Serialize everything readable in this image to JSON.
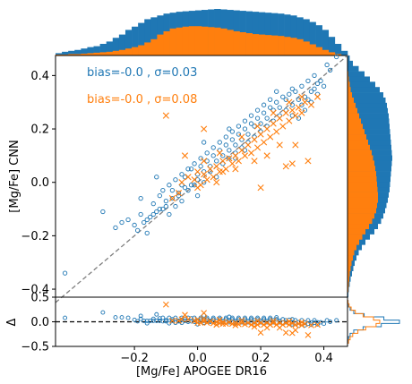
{
  "chart_data": {
    "type": "scatter",
    "colors": {
      "apogee": "#1f77b4",
      "test": "#ff7f0e",
      "identity": "#7f7f7f",
      "zero": "#000000"
    },
    "main": {
      "xlim": [
        -0.45,
        0.475
      ],
      "ylim": [
        -0.43,
        0.475
      ],
      "yticks": [
        -0.4,
        -0.2,
        0.0,
        0.2,
        0.4
      ],
      "ylabel": "[Mg/Fe] CNN",
      "annotations": [
        {
          "text": "bias=-0.0 , σ=0.03",
          "color": "#1f77b4"
        },
        {
          "text": "bias=-0.0 , σ=0.08",
          "color": "#ff7f0e"
        }
      ],
      "series": [
        {
          "marker": "circle-open",
          "color": "#1f77b4",
          "points": [
            [
              -0.42,
              -0.34
            ],
            [
              -0.3,
              -0.11
            ],
            [
              -0.22,
              -0.14
            ],
            [
              -0.19,
              -0.18
            ],
            [
              -0.18,
              -0.12
            ],
            [
              -0.17,
              -0.15
            ],
            [
              -0.16,
              -0.19
            ],
            [
              -0.15,
              -0.13
            ],
            [
              -0.14,
              -0.08
            ],
            [
              -0.13,
              -0.11
            ],
            [
              -0.12,
              -0.05
            ],
            [
              -0.11,
              -0.1
            ],
            [
              -0.1,
              -0.07
            ],
            [
              -0.09,
              -0.12
            ],
            [
              -0.08,
              -0.03
            ],
            [
              -0.07,
              -0.09
            ],
            [
              -0.06,
              -0.04
            ],
            [
              -0.05,
              -0.01
            ],
            [
              -0.05,
              -0.07
            ],
            [
              -0.04,
              0.02
            ],
            [
              -0.03,
              -0.03
            ],
            [
              -0.02,
              0.05
            ],
            [
              -0.01,
              -0.01
            ],
            [
              0.0,
              0.03
            ],
            [
              0.0,
              -0.05
            ],
            [
              0.01,
              0.06
            ],
            [
              0.02,
              0.0
            ],
            [
              0.03,
              0.08
            ],
            [
              0.04,
              0.04
            ],
            [
              0.05,
              0.1
            ],
            [
              0.06,
              0.02
            ],
            [
              0.07,
              0.12
            ],
            [
              0.08,
              0.07
            ],
            [
              0.09,
              0.14
            ],
            [
              0.1,
              0.09
            ],
            [
              0.11,
              0.16
            ],
            [
              0.12,
              0.11
            ],
            [
              0.13,
              0.18
            ],
            [
              0.14,
              0.13
            ],
            [
              0.15,
              0.2
            ],
            [
              0.16,
              0.15
            ],
            [
              0.17,
              0.22
            ],
            [
              0.18,
              0.17
            ],
            [
              0.19,
              0.24
            ],
            [
              0.2,
              0.19
            ],
            [
              0.21,
              0.26
            ],
            [
              0.22,
              0.21
            ],
            [
              0.23,
              0.28
            ],
            [
              0.24,
              0.23
            ],
            [
              0.25,
              0.3
            ],
            [
              0.26,
              0.25
            ],
            [
              0.27,
              0.32
            ],
            [
              0.28,
              0.27
            ],
            [
              0.29,
              0.33
            ],
            [
              0.3,
              0.29
            ],
            [
              0.31,
              0.34
            ],
            [
              0.32,
              0.31
            ],
            [
              0.33,
              0.36
            ],
            [
              0.34,
              0.32
            ],
            [
              0.35,
              0.38
            ],
            [
              0.36,
              0.34
            ],
            [
              0.37,
              0.4
            ],
            [
              0.38,
              0.37
            ],
            [
              0.41,
              0.44
            ],
            [
              0.44,
              0.47
            ],
            [
              0.3,
              0.35
            ],
            [
              0.28,
              0.31
            ],
            [
              0.26,
              0.28
            ],
            [
              0.24,
              0.27
            ],
            [
              0.22,
              0.24
            ],
            [
              0.2,
              0.22
            ],
            [
              0.18,
              0.21
            ],
            [
              0.16,
              0.18
            ],
            [
              0.14,
              0.16
            ],
            [
              0.12,
              0.14
            ],
            [
              0.1,
              0.12
            ],
            [
              0.08,
              0.1
            ],
            [
              0.06,
              0.08
            ],
            [
              0.04,
              0.06
            ],
            [
              0.02,
              0.04
            ],
            [
              0.0,
              0.01
            ],
            [
              -0.02,
              -0.01
            ],
            [
              -0.04,
              -0.02
            ],
            [
              -0.06,
              -0.05
            ],
            [
              -0.08,
              -0.06
            ],
            [
              -0.1,
              -0.09
            ],
            [
              -0.12,
              -0.1
            ],
            [
              -0.14,
              -0.12
            ],
            [
              -0.16,
              -0.14
            ],
            [
              -0.2,
              -0.16
            ],
            [
              -0.24,
              -0.15
            ],
            [
              -0.26,
              -0.17
            ],
            [
              -0.18,
              -0.06
            ],
            [
              -0.13,
              0.02
            ],
            [
              0.02,
              0.15
            ],
            [
              0.1,
              0.2
            ],
            [
              0.32,
              0.24
            ],
            [
              0.34,
              0.27
            ],
            [
              0.36,
              0.3
            ],
            [
              0.38,
              0.33
            ],
            [
              0.4,
              0.36
            ],
            [
              0.25,
              0.34
            ],
            [
              0.23,
              0.31
            ],
            [
              0.21,
              0.29
            ],
            [
              0.19,
              0.27
            ],
            [
              0.17,
              0.25
            ],
            [
              0.15,
              0.23
            ],
            [
              0.13,
              0.21
            ],
            [
              0.11,
              0.19
            ],
            [
              0.09,
              0.17
            ],
            [
              0.07,
              0.15
            ],
            [
              0.05,
              0.13
            ],
            [
              0.03,
              0.11
            ],
            [
              0.01,
              0.09
            ],
            [
              -0.01,
              0.07
            ],
            [
              -0.03,
              0.05
            ],
            [
              -0.05,
              0.03
            ],
            [
              -0.07,
              0.01
            ],
            [
              -0.09,
              -0.01
            ],
            [
              -0.11,
              -0.03
            ],
            [
              0.3,
              0.25
            ],
            [
              0.33,
              0.29
            ],
            [
              0.35,
              0.31
            ],
            [
              0.37,
              0.35
            ],
            [
              0.39,
              0.38
            ],
            [
              0.42,
              0.42
            ],
            [
              0.15,
              0.12
            ],
            [
              0.12,
              0.09
            ]
          ]
        },
        {
          "marker": "x",
          "color": "#ff7f0e",
          "points": [
            [
              -0.05,
              0.0
            ],
            [
              -0.03,
              0.02
            ],
            [
              -0.01,
              0.01
            ],
            [
              0.0,
              0.04
            ],
            [
              0.01,
              -0.01
            ],
            [
              0.02,
              0.03
            ],
            [
              0.03,
              0.01
            ],
            [
              0.04,
              0.05
            ],
            [
              0.05,
              0.02
            ],
            [
              0.06,
              0.06
            ],
            [
              0.07,
              0.04
            ],
            [
              0.08,
              0.08
            ],
            [
              0.09,
              0.05
            ],
            [
              0.1,
              0.09
            ],
            [
              0.11,
              0.07
            ],
            [
              0.12,
              0.1
            ],
            [
              0.13,
              0.08
            ],
            [
              0.14,
              0.12
            ],
            [
              0.15,
              0.1
            ],
            [
              0.16,
              0.14
            ],
            [
              0.17,
              0.11
            ],
            [
              0.18,
              0.16
            ],
            [
              0.19,
              0.13
            ],
            [
              0.2,
              0.18
            ],
            [
              0.21,
              0.15
            ],
            [
              0.22,
              0.2
            ],
            [
              0.23,
              0.17
            ],
            [
              0.24,
              0.22
            ],
            [
              0.25,
              0.19
            ],
            [
              0.26,
              0.24
            ],
            [
              0.27,
              0.21
            ],
            [
              0.28,
              0.26
            ],
            [
              0.29,
              0.23
            ],
            [
              0.3,
              0.27
            ],
            [
              0.31,
              0.25
            ],
            [
              0.32,
              0.28
            ],
            [
              0.33,
              0.26
            ],
            [
              0.34,
              0.3
            ],
            [
              0.36,
              0.29
            ],
            [
              0.38,
              0.32
            ],
            [
              -0.1,
              0.25
            ],
            [
              0.28,
              0.06
            ],
            [
              0.3,
              0.07
            ],
            [
              0.2,
              -0.02
            ],
            [
              0.08,
              0.04
            ],
            [
              0.02,
              0.2
            ],
            [
              -0.04,
              0.1
            ],
            [
              0.35,
              0.08
            ],
            [
              0.31,
              0.14
            ],
            [
              0.26,
              0.14
            ],
            [
              0.22,
              0.1
            ],
            [
              0.18,
              0.08
            ],
            [
              0.12,
              0.05
            ],
            [
              0.06,
              0.0
            ],
            [
              0.0,
              -0.02
            ],
            [
              -0.06,
              -0.04
            ],
            [
              -0.08,
              -0.06
            ],
            [
              0.02,
              0.08
            ],
            [
              0.07,
              0.11
            ],
            [
              0.14,
              0.17
            ],
            [
              0.19,
              0.21
            ],
            [
              0.24,
              0.26
            ],
            [
              0.29,
              0.3
            ],
            [
              0.33,
              0.32
            ]
          ]
        }
      ]
    },
    "residual": {
      "xlim": [
        -0.45,
        0.475
      ],
      "ylim": [
        -0.5,
        0.5
      ],
      "yticks": [
        -0.5,
        0.0,
        0.5
      ],
      "xticks": [
        -0.2,
        0.0,
        0.2,
        0.4
      ],
      "ylabel": "Δ",
      "xlabel": "[Mg/Fe] APOGEE DR16"
    },
    "top_hist": {
      "bin_edges": [
        -0.45,
        0.475
      ],
      "series": [
        {
          "color": "#1f77b4",
          "values": [
            0.05,
            0.08,
            0.1,
            0.12,
            0.15,
            0.18,
            0.2,
            0.25,
            0.3,
            0.38,
            0.45,
            0.55,
            0.62,
            0.7,
            0.78,
            0.82,
            0.86,
            0.9,
            0.92,
            0.94,
            0.95,
            0.96,
            0.97,
            0.98,
            0.99,
            1.0,
            0.99,
            0.98,
            0.97,
            0.96,
            0.95,
            0.94,
            0.93,
            0.92,
            0.91,
            0.9,
            0.88,
            0.86,
            0.82,
            0.78,
            0.72,
            0.65,
            0.55,
            0.4,
            0.25,
            0.1
          ]
        },
        {
          "color": "#ff7f0e",
          "values": [
            0.02,
            0.02,
            0.03,
            0.03,
            0.04,
            0.05,
            0.06,
            0.07,
            0.08,
            0.1,
            0.12,
            0.15,
            0.18,
            0.22,
            0.28,
            0.35,
            0.45,
            0.52,
            0.58,
            0.6,
            0.62,
            0.63,
            0.63,
            0.62,
            0.61,
            0.6,
            0.58,
            0.55,
            0.52,
            0.5,
            0.48,
            0.46,
            0.45,
            0.44,
            0.43,
            0.42,
            0.4,
            0.38,
            0.35,
            0.3,
            0.24,
            0.18,
            0.12,
            0.07,
            0.03,
            0.01
          ]
        }
      ]
    },
    "right_hist": {
      "bin_edges": [
        -0.43,
        0.475
      ],
      "series": [
        {
          "color": "#1f77b4",
          "values": [
            0.02,
            0.03,
            0.05,
            0.07,
            0.1,
            0.13,
            0.16,
            0.2,
            0.25,
            0.32,
            0.4,
            0.5,
            0.6,
            0.68,
            0.75,
            0.8,
            0.84,
            0.87,
            0.9,
            0.92,
            0.94,
            0.95,
            0.96,
            0.97,
            0.98,
            0.99,
            1.0,
            0.99,
            0.98,
            0.97,
            0.96,
            0.95,
            0.94,
            0.93,
            0.92,
            0.9,
            0.88,
            0.85,
            0.8,
            0.72,
            0.62,
            0.5,
            0.38,
            0.25,
            0.12,
            0.05
          ]
        },
        {
          "color": "#ff7f0e",
          "values": [
            0.01,
            0.02,
            0.03,
            0.04,
            0.05,
            0.07,
            0.09,
            0.12,
            0.15,
            0.2,
            0.26,
            0.33,
            0.4,
            0.48,
            0.55,
            0.6,
            0.64,
            0.66,
            0.68,
            0.68,
            0.67,
            0.66,
            0.65,
            0.64,
            0.62,
            0.6,
            0.57,
            0.54,
            0.5,
            0.46,
            0.42,
            0.38,
            0.34,
            0.3,
            0.26,
            0.22,
            0.18,
            0.14,
            0.1,
            0.07,
            0.05,
            0.03,
            0.02,
            0.01,
            0.005,
            0.0
          ]
        }
      ]
    },
    "residual_hist": {
      "series": [
        {
          "color": "#1f77b4",
          "values": [
            0.0,
            0.01,
            0.02,
            0.05,
            0.12,
            0.3,
            0.65,
            1.0,
            0.7,
            0.32,
            0.12,
            0.05,
            0.02,
            0.01,
            0.0
          ]
        },
        {
          "color": "#ff7f0e",
          "values": [
            0.0,
            0.02,
            0.05,
            0.1,
            0.2,
            0.35,
            0.55,
            0.62,
            0.5,
            0.3,
            0.15,
            0.07,
            0.03,
            0.01,
            0.0
          ]
        }
      ]
    }
  }
}
